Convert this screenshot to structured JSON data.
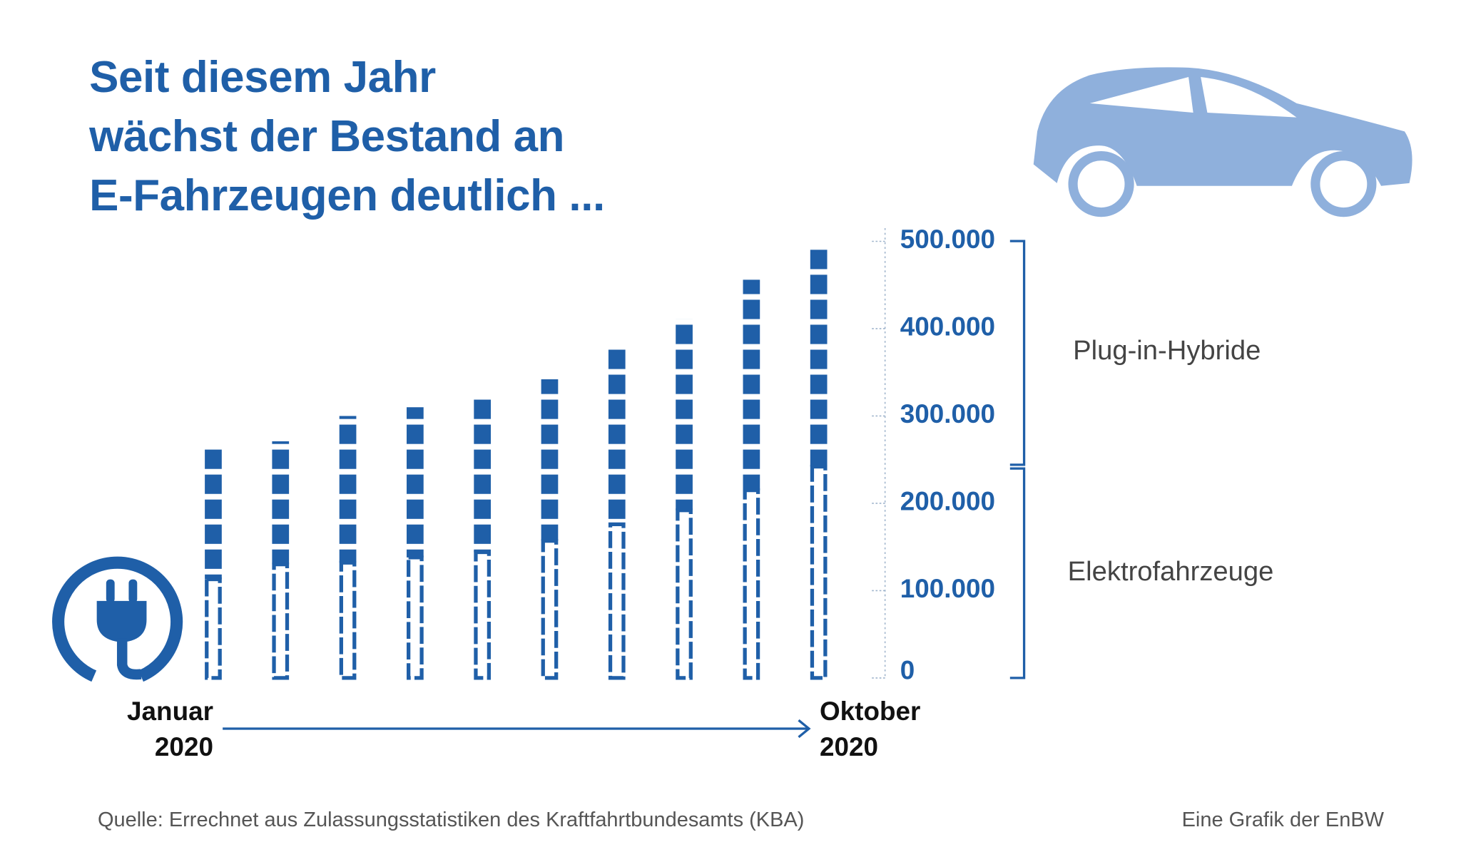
{
  "title": "Seit diesem Jahr\nwächst der Bestand an\nE-Fahrzeugen deutlich ...",
  "chart_data": {
    "type": "bar",
    "stacked": true,
    "categories": [
      "Januar\n2020",
      null,
      null,
      null,
      null,
      null,
      null,
      null,
      null,
      "Oktober\n2020"
    ],
    "series": [
      {
        "name": "Elektrofahrzeuge",
        "color": "#1f5fa8",
        "values": [
          113000,
          130000,
          132000,
          138000,
          144000,
          157000,
          176000,
          192000,
          215000,
          242000
        ]
      },
      {
        "name": "Plug-in-Hybride",
        "color": "#1f5fa8",
        "values": [
          149000,
          141000,
          168000,
          172000,
          179000,
          185000,
          202000,
          219000,
          241000,
          254000
        ]
      }
    ],
    "ylim": [
      0,
      500000
    ],
    "yticks": [
      0,
      {
        "value": 100000,
        "label": "100.000"
      },
      {
        "value": 200000,
        "label": "200.000"
      },
      {
        "value": 300000,
        "label": "300.000"
      },
      {
        "value": 400000,
        "label": "400.000"
      },
      {
        "value": 500000,
        "label": "500.000"
      }
    ],
    "grid": false
  },
  "source": "Quelle: Errechnet aus Zulassungsstatistiken des Kraftfahrtbundesamts (KBA)",
  "credit": "Eine Grafik der EnBW"
}
